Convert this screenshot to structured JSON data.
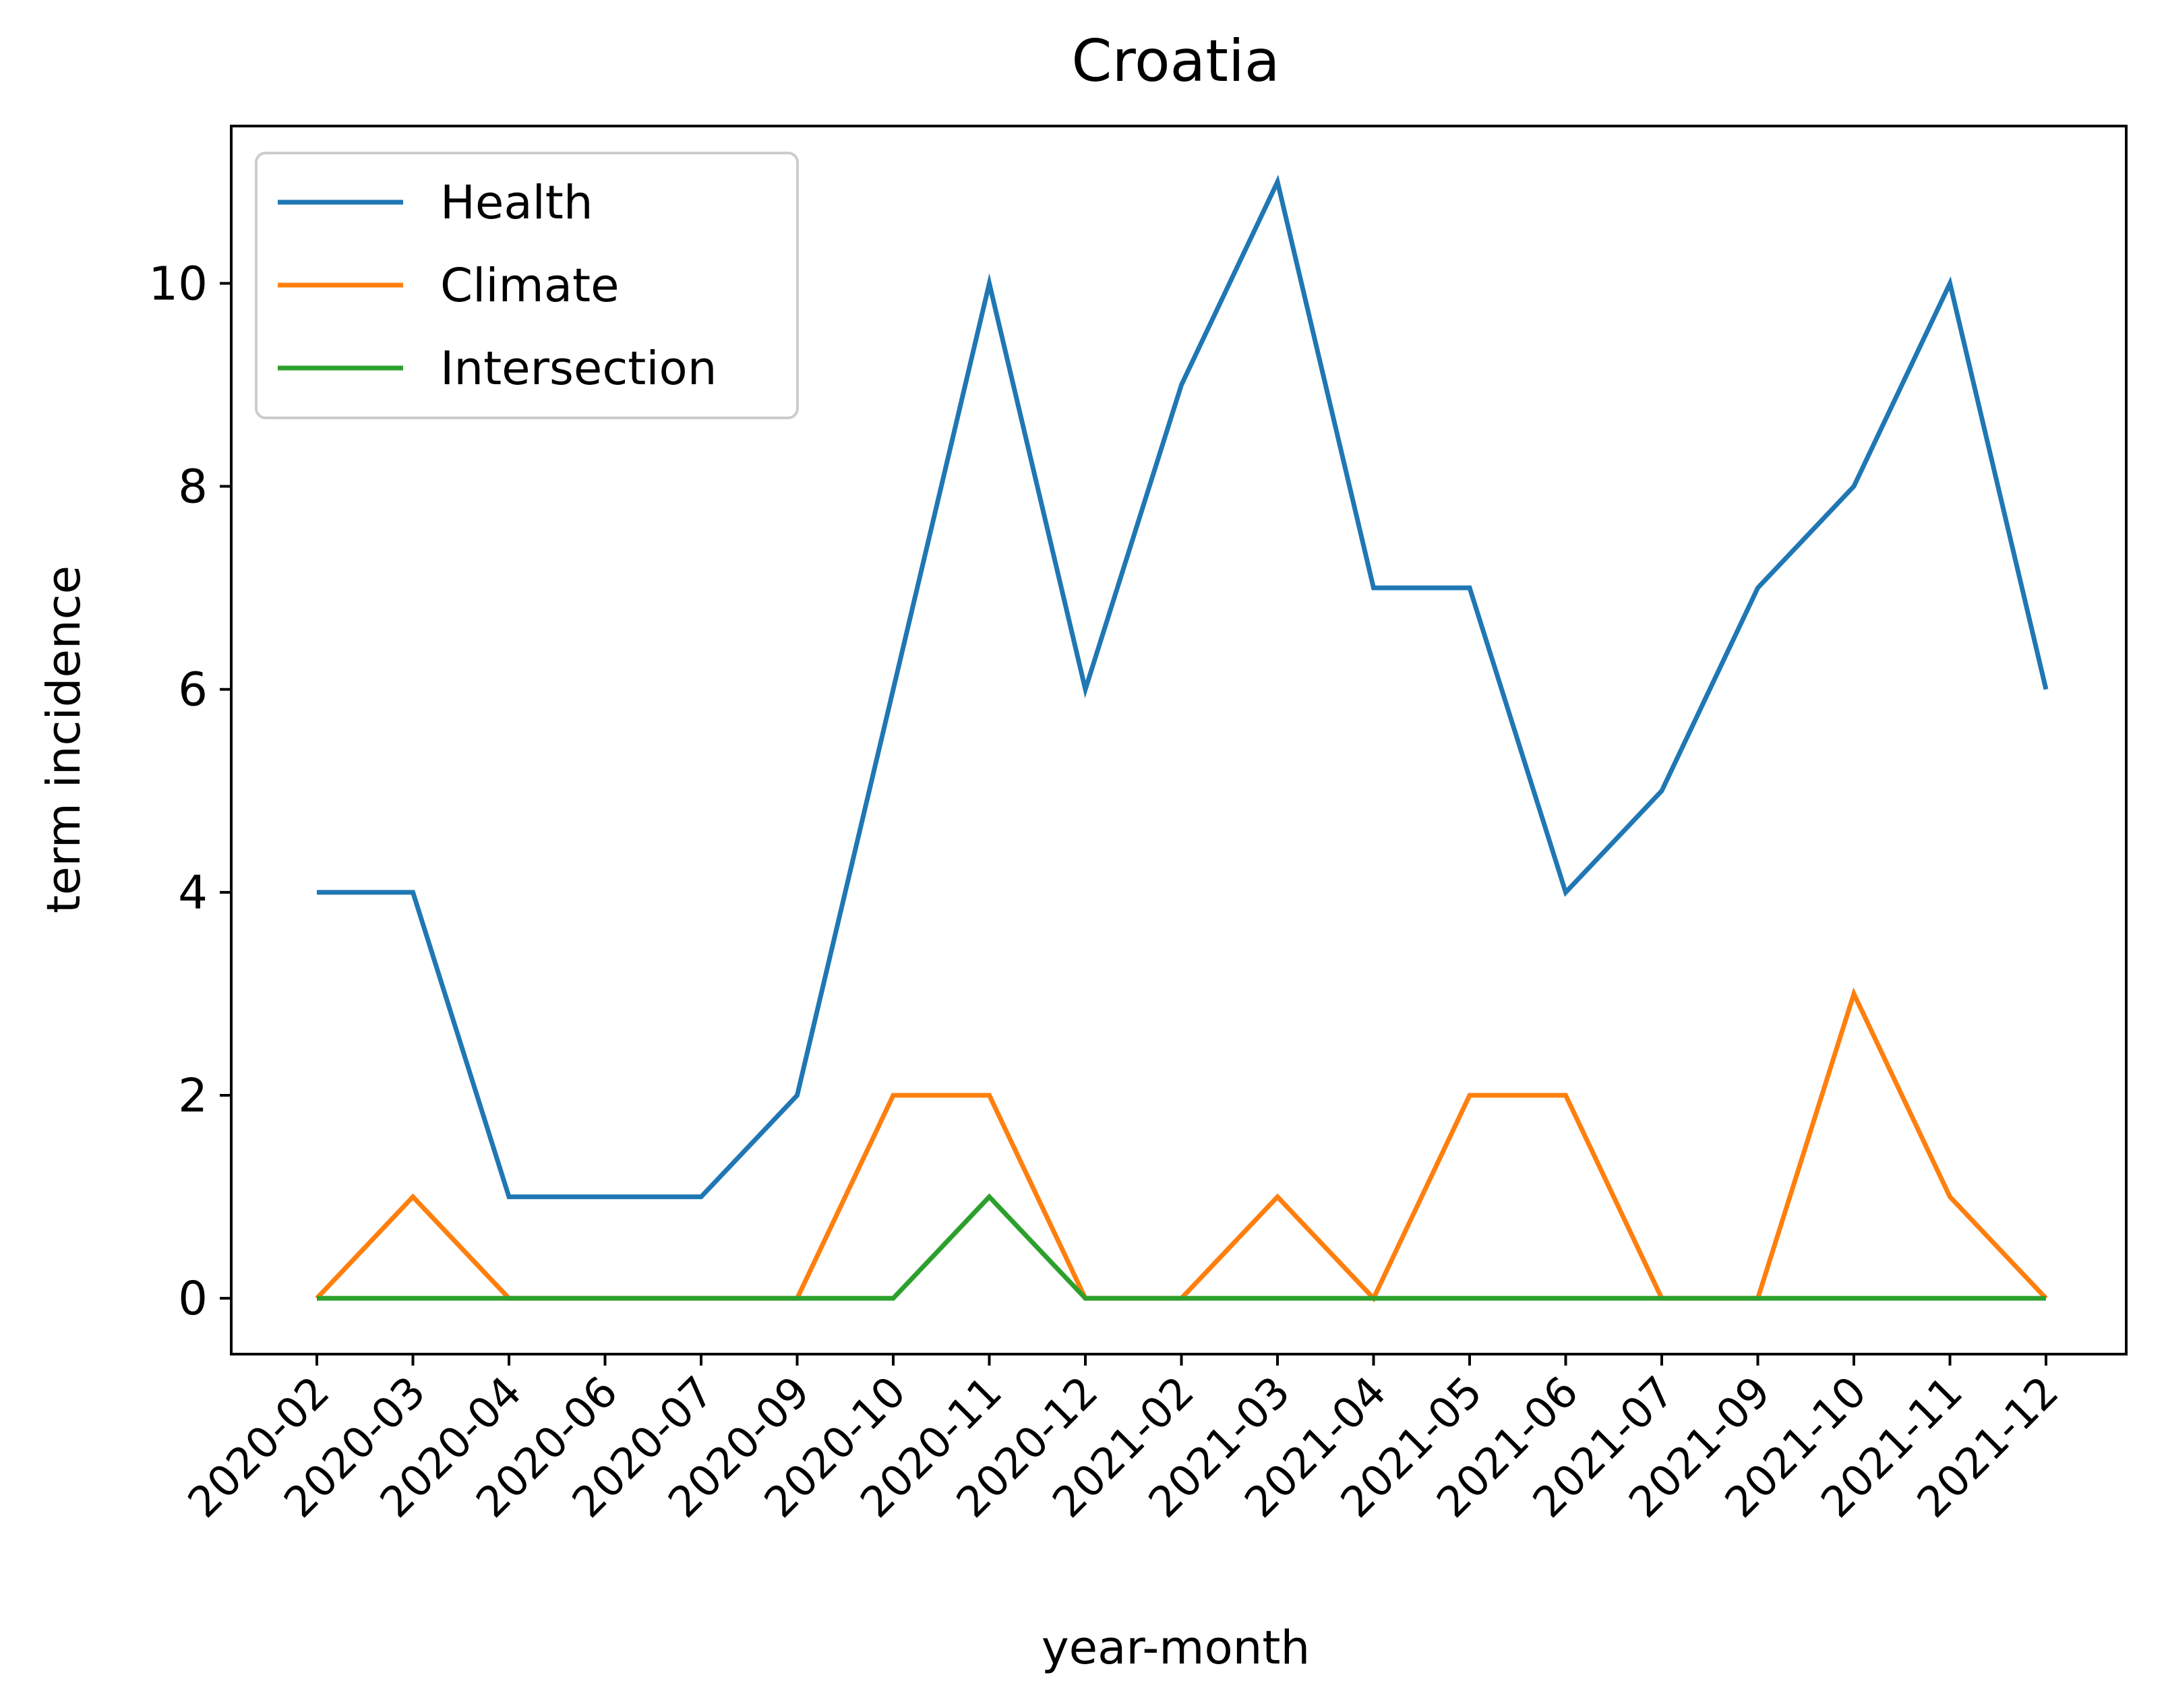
{
  "chart_data": {
    "type": "line",
    "title": "Croatia",
    "xlabel": "year-month",
    "ylabel": "term incidence",
    "categories": [
      "2020-02",
      "2020-03",
      "2020-04",
      "2020-06",
      "2020-07",
      "2020-09",
      "2020-10",
      "2020-11",
      "2020-12",
      "2021-02",
      "2021-03",
      "2021-04",
      "2021-05",
      "2021-06",
      "2021-07",
      "2021-09",
      "2021-10",
      "2021-11",
      "2021-12"
    ],
    "series": [
      {
        "name": "Health",
        "color": "#1f77b4",
        "values": [
          4,
          4,
          1,
          1,
          1,
          2,
          6,
          10,
          6,
          9,
          11,
          7,
          7,
          4,
          5,
          7,
          8,
          10,
          6
        ]
      },
      {
        "name": "Climate",
        "color": "#ff7f0e",
        "values": [
          0,
          1,
          0,
          0,
          0,
          0,
          2,
          2,
          0,
          0,
          1,
          0,
          2,
          2,
          0,
          0,
          3,
          1,
          0
        ]
      },
      {
        "name": "Intersection",
        "color": "#2ca02c",
        "values": [
          0,
          0,
          0,
          0,
          0,
          0,
          0,
          1,
          0,
          0,
          0,
          0,
          0,
          0,
          0,
          0,
          0,
          0,
          0
        ]
      }
    ],
    "ylim": [
      -0.55,
      11.55
    ],
    "yticks": [
      0,
      2,
      4,
      6,
      8,
      10
    ],
    "grid": false,
    "legend_position": "upper-left"
  }
}
